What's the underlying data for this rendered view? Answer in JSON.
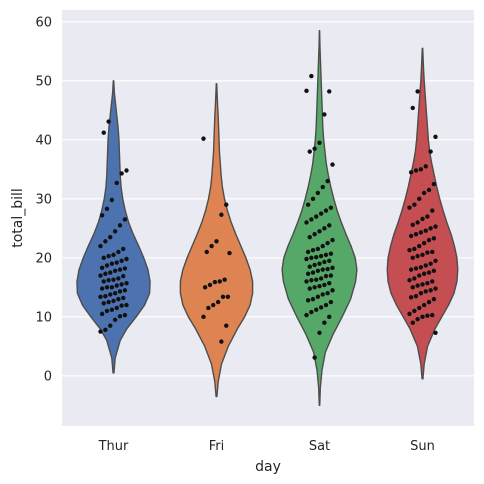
{
  "chart_data": {
    "type": "violin",
    "title": "",
    "xlabel": "day",
    "ylabel": "total_bill",
    "categories": [
      "Thur",
      "Fri",
      "Sat",
      "Sun"
    ],
    "ylim": [
      -8.5,
      62
    ],
    "yticks": [
      0,
      10,
      20,
      30,
      40,
      50,
      60
    ],
    "grid": true,
    "background": "#eaeaf2",
    "gridColor": "#ffffff",
    "violinEdgeColor": "#4d4d4d",
    "pointColor": "#111111",
    "colors": [
      "#4c72b0",
      "#dd8452",
      "#55a868",
      "#c44e52"
    ],
    "series": [
      {
        "category": "Thur",
        "range": [
          0.5,
          50
        ],
        "profile": [
          [
            0.5,
            0.01
          ],
          [
            3,
            0.04
          ],
          [
            6,
            0.16
          ],
          [
            8,
            0.32
          ],
          [
            10,
            0.54
          ],
          [
            12,
            0.74
          ],
          [
            14,
            0.86
          ],
          [
            16,
            0.87
          ],
          [
            18,
            0.82
          ],
          [
            20,
            0.72
          ],
          [
            22,
            0.6
          ],
          [
            24,
            0.47
          ],
          [
            26,
            0.36
          ],
          [
            28,
            0.28
          ],
          [
            30,
            0.22
          ],
          [
            32,
            0.18
          ],
          [
            34,
            0.16
          ],
          [
            36,
            0.15
          ],
          [
            38,
            0.14
          ],
          [
            40,
            0.13
          ],
          [
            42,
            0.11
          ],
          [
            44,
            0.08
          ],
          [
            46,
            0.05
          ],
          [
            48,
            0.02
          ],
          [
            50,
            0.005
          ]
        ],
        "points": [
          7.5,
          7.8,
          8.5,
          9.5,
          10.1,
          10.3,
          10.5,
          11,
          11.2,
          11.5,
          11.9,
          12,
          12.3,
          12.5,
          12.7,
          13,
          13.2,
          13.4,
          13.5,
          13.8,
          14,
          14.3,
          14.5,
          14.8,
          15,
          15,
          15.3,
          15.5,
          15.7,
          16,
          16.2,
          16.3,
          16.5,
          16.9,
          17,
          17.3,
          17.5,
          17.8,
          18,
          18.2,
          18.3,
          18.7,
          19,
          19.2,
          19.5,
          19.8,
          20,
          20.3,
          20.5,
          21,
          21.5,
          22,
          22.8,
          23.5,
          24.5,
          25.5,
          26.5,
          27.2,
          28.3,
          29.8,
          32.7,
          34.3,
          34.8,
          41.2,
          43.1
        ]
      },
      {
        "category": "Fri",
        "range": [
          -3.5,
          49.5
        ],
        "profile": [
          [
            -3.5,
            0.01
          ],
          [
            -1,
            0.04
          ],
          [
            2,
            0.12
          ],
          [
            5,
            0.28
          ],
          [
            8,
            0.5
          ],
          [
            10,
            0.67
          ],
          [
            12,
            0.8
          ],
          [
            14,
            0.86
          ],
          [
            16,
            0.86
          ],
          [
            18,
            0.8
          ],
          [
            20,
            0.7
          ],
          [
            22,
            0.58
          ],
          [
            24,
            0.46
          ],
          [
            26,
            0.35
          ],
          [
            28,
            0.26
          ],
          [
            30,
            0.19
          ],
          [
            32,
            0.14
          ],
          [
            34,
            0.11
          ],
          [
            36,
            0.09
          ],
          [
            38,
            0.07
          ],
          [
            40,
            0.06
          ],
          [
            42,
            0.05
          ],
          [
            44,
            0.04
          ],
          [
            46,
            0.025
          ],
          [
            49.5,
            0.005
          ]
        ],
        "points": [
          5.8,
          8.5,
          10,
          11.5,
          12,
          12.5,
          13.4,
          13.4,
          15,
          15.4,
          15.9,
          16,
          16.3,
          20.8,
          21,
          22,
          22.8,
          27.3,
          29,
          40.2
        ]
      },
      {
        "category": "Sat",
        "range": [
          -5,
          58.5
        ],
        "profile": [
          [
            -5,
            0.005
          ],
          [
            -2,
            0.02
          ],
          [
            1,
            0.06
          ],
          [
            4,
            0.14
          ],
          [
            7,
            0.32
          ],
          [
            10,
            0.54
          ],
          [
            13,
            0.74
          ],
          [
            16,
            0.86
          ],
          [
            18,
            0.89
          ],
          [
            20,
            0.85
          ],
          [
            22,
            0.75
          ],
          [
            24,
            0.63
          ],
          [
            26,
            0.52
          ],
          [
            28,
            0.42
          ],
          [
            30,
            0.34
          ],
          [
            32,
            0.27
          ],
          [
            34,
            0.21
          ],
          [
            36,
            0.16
          ],
          [
            38,
            0.13
          ],
          [
            40,
            0.1
          ],
          [
            42,
            0.08
          ],
          [
            44,
            0.07
          ],
          [
            46,
            0.06
          ],
          [
            48,
            0.05
          ],
          [
            50,
            0.04
          ],
          [
            52,
            0.03
          ],
          [
            54,
            0.02
          ],
          [
            56,
            0.01
          ],
          [
            58.5,
            0.003
          ]
        ],
        "points": [
          3.1,
          7.3,
          9,
          10,
          10.3,
          10.8,
          11.2,
          11.6,
          12,
          12.5,
          12.8,
          13,
          13.4,
          13.8,
          14,
          14.5,
          14.8,
          15,
          15.2,
          15.4,
          15.7,
          16,
          16.2,
          16.3,
          16.5,
          16.9,
          17,
          17.3,
          17.5,
          17.8,
          18,
          18.1,
          18.3,
          18.5,
          18.8,
          19,
          19.3,
          19.5,
          19.8,
          20,
          20.1,
          20.3,
          20.5,
          20.7,
          21,
          21.3,
          21.5,
          22,
          22.5,
          23,
          23.5,
          24,
          24.5,
          25,
          25.5,
          26,
          26.5,
          27,
          27.5,
          28,
          28.5,
          29,
          30,
          31,
          32,
          33,
          35.8,
          38,
          38.5,
          39.5,
          44.3,
          48.2,
          48.3,
          50.8
        ]
      },
      {
        "category": "Sun",
        "range": [
          -0.5,
          55.5
        ],
        "profile": [
          [
            -0.5,
            0.01
          ],
          [
            2,
            0.04
          ],
          [
            5,
            0.12
          ],
          [
            8,
            0.3
          ],
          [
            10,
            0.46
          ],
          [
            12,
            0.62
          ],
          [
            14,
            0.75
          ],
          [
            16,
            0.82
          ],
          [
            18,
            0.84
          ],
          [
            20,
            0.82
          ],
          [
            22,
            0.76
          ],
          [
            24,
            0.68
          ],
          [
            26,
            0.58
          ],
          [
            28,
            0.49
          ],
          [
            30,
            0.41
          ],
          [
            32,
            0.34
          ],
          [
            34,
            0.28
          ],
          [
            36,
            0.22
          ],
          [
            38,
            0.17
          ],
          [
            40,
            0.14
          ],
          [
            42,
            0.12
          ],
          [
            44,
            0.1
          ],
          [
            46,
            0.08
          ],
          [
            48,
            0.06
          ],
          [
            50,
            0.04
          ],
          [
            52,
            0.025
          ],
          [
            55.5,
            0.005
          ]
        ],
        "points": [
          7.3,
          9,
          9.6,
          10,
          10.2,
          10.3,
          10.5,
          11,
          11.5,
          12,
          12.5,
          13,
          13.3,
          13.5,
          14,
          14.3,
          14.5,
          14.8,
          15,
          15.3,
          15.5,
          15.7,
          16,
          16.2,
          16.5,
          17,
          17.3,
          17.5,
          17.8,
          18,
          18.2,
          18.4,
          18.7,
          19,
          19.5,
          20,
          20.3,
          20.5,
          20.9,
          21,
          21.3,
          21.5,
          22,
          22.5,
          23,
          23.3,
          23.7,
          24,
          24.3,
          24.6,
          25,
          25.3,
          25.6,
          26,
          26.6,
          27,
          28,
          28.5,
          29,
          30,
          31,
          31.5,
          32.5,
          34.5,
          34.8,
          35,
          35.5,
          38,
          40.5,
          45.4,
          48.2
        ]
      }
    ]
  }
}
